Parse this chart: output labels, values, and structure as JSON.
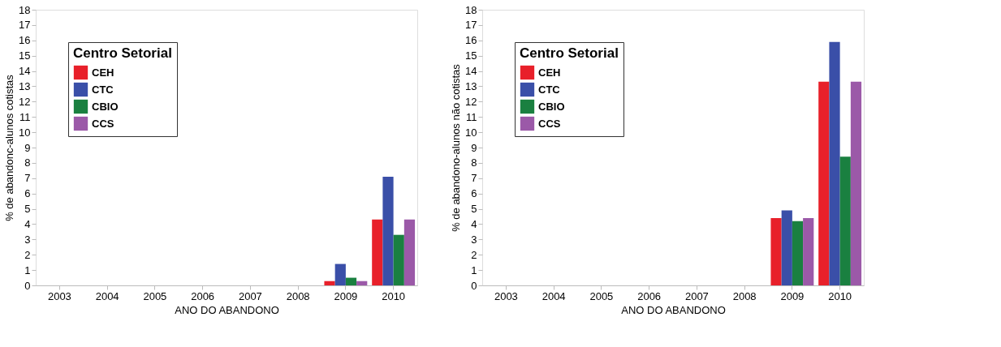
{
  "chart_data": [
    {
      "type": "bar",
      "xlabel": "ANO DO ABANDONO",
      "ylabel": "% de abandonc-alunos cotistas",
      "legend_title": "Centro Setorial",
      "legend": "top left",
      "grid": false,
      "categories": [
        "2003",
        "2004",
        "2005",
        "2006",
        "2007",
        "2008",
        "2009",
        "2010"
      ],
      "ylim": [
        0,
        18
      ],
      "yticks": [
        0,
        1,
        2,
        3,
        4,
        5,
        6,
        7,
        8,
        9,
        10,
        11,
        12,
        13,
        14,
        15,
        16,
        17,
        18
      ],
      "series": [
        {
          "name": "CEH",
          "color": "#e8202a",
          "values": [
            null,
            null,
            null,
            null,
            null,
            null,
            0.28,
            4.3
          ]
        },
        {
          "name": "CTC",
          "color": "#3a4fa8",
          "values": [
            null,
            null,
            null,
            null,
            null,
            null,
            1.4,
            7.1
          ]
        },
        {
          "name": "CBIO",
          "color": "#1a8040",
          "values": [
            null,
            null,
            null,
            null,
            null,
            null,
            0.5,
            3.3
          ]
        },
        {
          "name": "CCS",
          "color": "#9b59a8",
          "values": [
            null,
            null,
            null,
            null,
            null,
            null,
            0.28,
            4.3
          ]
        }
      ]
    },
    {
      "type": "bar",
      "xlabel": "ANO DO ABANDONO",
      "ylabel": "% de abandono-alunos não cotistas",
      "legend_title": "Centro Setorial",
      "legend": "top left",
      "grid": false,
      "categories": [
        "2003",
        "2004",
        "2005",
        "2006",
        "2007",
        "2008",
        "2009",
        "2010"
      ],
      "ylim": [
        0,
        18
      ],
      "yticks": [
        0,
        1,
        2,
        3,
        4,
        5,
        6,
        7,
        8,
        9,
        10,
        11,
        12,
        13,
        14,
        15,
        16,
        17,
        18
      ],
      "series": [
        {
          "name": "CEH",
          "color": "#e8202a",
          "values": [
            null,
            null,
            null,
            null,
            null,
            null,
            4.4,
            13.3
          ]
        },
        {
          "name": "CTC",
          "color": "#3a4fa8",
          "values": [
            null,
            null,
            null,
            null,
            null,
            null,
            4.9,
            15.9
          ]
        },
        {
          "name": "CBIO",
          "color": "#1a8040",
          "values": [
            null,
            null,
            null,
            null,
            null,
            null,
            4.2,
            8.4
          ]
        },
        {
          "name": "CCS",
          "color": "#9b59a8",
          "values": [
            null,
            null,
            null,
            null,
            null,
            null,
            4.4,
            13.3
          ]
        }
      ]
    }
  ]
}
